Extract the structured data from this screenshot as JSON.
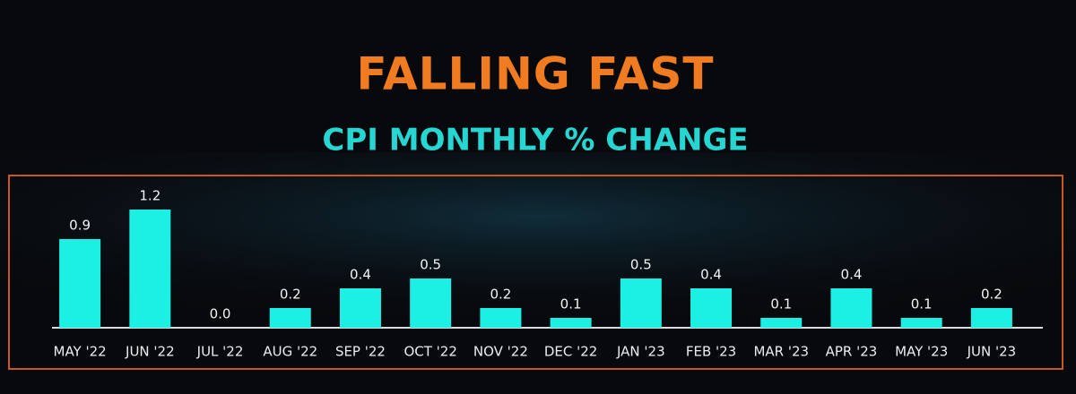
{
  "chart_data": {
    "type": "bar",
    "title": "FALLING FAST",
    "subtitle": "CPI MONTHLY % CHANGE",
    "categories": [
      "MAY '22",
      "JUN '22",
      "JUL '22",
      "AUG '22",
      "SEP '22",
      "OCT '22",
      "NOV '22",
      "DEC '22",
      "JAN '23",
      "FEB '23",
      "MAR '23",
      "APR '23",
      "MAY '23",
      "JUN '23"
    ],
    "values": [
      0.9,
      1.2,
      0,
      0.2,
      0.4,
      0.5,
      0.2,
      0.1,
      0.5,
      0.4,
      0.1,
      0.4,
      0.1,
      0.2
    ],
    "value_labels": [
      "0.9",
      "1.2",
      "0.0",
      "0.2",
      "0.4",
      "0.5",
      "0.2",
      "0.1",
      "0.5",
      "0.4",
      "0.1",
      "0.4",
      "0.1",
      "0.2"
    ],
    "color": "#1cefe4"
  }
}
